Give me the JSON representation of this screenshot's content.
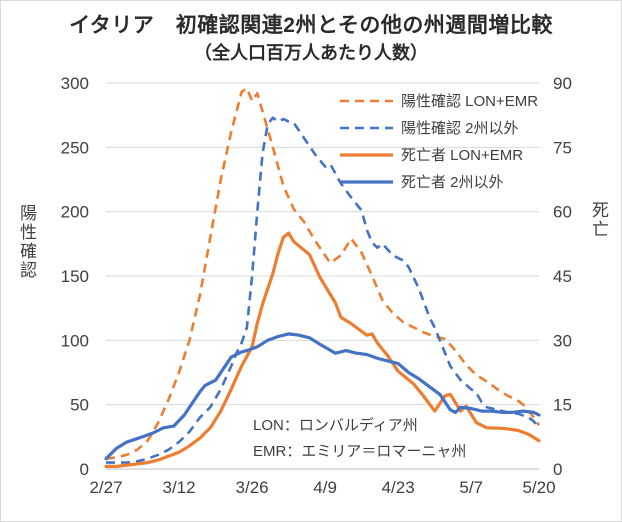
{
  "title": "イタリア　初確認関連2州とその他の州週間増比較",
  "subtitle": "（全人口百万人あたり人数）",
  "axes": {
    "left_title": "陽性確認",
    "right_title": "死亡"
  },
  "annotation": {
    "line1": "LON：ロンバルディア州",
    "line2": "EMR：エミリア＝ロマーニャ州"
  },
  "colors": {
    "orange": "#ED7D31",
    "blue": "#4472C4",
    "gridline": "#D9D9D9",
    "axis_line": "#BFBFBF",
    "text": "#3F3F3F"
  },
  "chart_data": {
    "type": "line",
    "title": "イタリア　初確認関連2州とその他の州週間増比較（全人口百万人あたり人数）",
    "x_tick_labels": [
      "2/27",
      "3/12",
      "3/26",
      "4/9",
      "4/23",
      "5/7",
      "5/20"
    ],
    "x_tick_days": [
      0,
      14,
      28,
      42,
      56,
      70,
      83
    ],
    "x_range_days": [
      0,
      83
    ],
    "left_axis": {
      "label": "陽性確認",
      "ticks": [
        0,
        50,
        100,
        150,
        200,
        250,
        300
      ],
      "range": [
        0,
        300
      ]
    },
    "right_axis": {
      "label": "死亡",
      "ticks": [
        0,
        15,
        30,
        45,
        60,
        75,
        90
      ],
      "range": [
        0,
        90
      ]
    },
    "grid": true,
    "legend_position": "inside-top-right",
    "series": [
      {
        "key": "positive-lon-emr",
        "name": "陽性確認 LON+EMR",
        "color": "#ED7D31",
        "style": "dashed",
        "axis": "left",
        "points": [
          [
            0,
            8
          ],
          [
            2,
            9
          ],
          [
            4,
            11
          ],
          [
            6,
            15
          ],
          [
            8,
            22
          ],
          [
            10,
            36
          ],
          [
            12,
            54
          ],
          [
            14,
            75
          ],
          [
            16,
            100
          ],
          [
            18,
            135
          ],
          [
            20,
            180
          ],
          [
            22,
            225
          ],
          [
            24,
            262
          ],
          [
            26,
            293
          ],
          [
            27,
            296
          ],
          [
            28,
            286
          ],
          [
            29,
            292
          ],
          [
            30,
            278
          ],
          [
            32,
            250
          ],
          [
            34,
            220
          ],
          [
            36,
            202
          ],
          [
            38,
            192
          ],
          [
            40,
            178
          ],
          [
            42,
            166
          ],
          [
            43,
            160
          ],
          [
            45,
            166
          ],
          [
            47,
            179
          ],
          [
            49,
            168
          ],
          [
            51,
            150
          ],
          [
            53,
            131
          ],
          [
            55,
            121
          ],
          [
            57,
            114
          ],
          [
            59,
            110
          ],
          [
            61,
            106
          ],
          [
            63,
            103
          ],
          [
            65,
            101
          ],
          [
            67,
            92
          ],
          [
            69,
            81
          ],
          [
            71,
            73
          ],
          [
            73,
            68
          ],
          [
            75,
            62
          ],
          [
            77,
            57
          ],
          [
            79,
            53
          ],
          [
            80,
            50
          ],
          [
            81,
            45
          ],
          [
            82,
            40
          ],
          [
            83,
            34
          ]
        ]
      },
      {
        "key": "positive-others",
        "name": "陽性確認 2州以外",
        "color": "#4472C4",
        "style": "dashed",
        "axis": "left",
        "points": [
          [
            0,
            5
          ],
          [
            2,
            5
          ],
          [
            4,
            5
          ],
          [
            6,
            6
          ],
          [
            8,
            8
          ],
          [
            10,
            11
          ],
          [
            12,
            15
          ],
          [
            14,
            21
          ],
          [
            16,
            29
          ],
          [
            18,
            40
          ],
          [
            20,
            48
          ],
          [
            22,
            62
          ],
          [
            24,
            80
          ],
          [
            25,
            90
          ],
          [
            26,
            98
          ],
          [
            27,
            110
          ],
          [
            28,
            150
          ],
          [
            29,
            200
          ],
          [
            30,
            245
          ],
          [
            31,
            268
          ],
          [
            32,
            273
          ],
          [
            33,
            270
          ],
          [
            34,
            272
          ],
          [
            35,
            270
          ],
          [
            36,
            269
          ],
          [
            38,
            257
          ],
          [
            40,
            245
          ],
          [
            42,
            235
          ],
          [
            43,
            237
          ],
          [
            45,
            222
          ],
          [
            47,
            211
          ],
          [
            49,
            201
          ],
          [
            50,
            186
          ],
          [
            51,
            176
          ],
          [
            52,
            172
          ],
          [
            53,
            175
          ],
          [
            55,
            166
          ],
          [
            57,
            162
          ],
          [
            58,
            157
          ],
          [
            60,
            140
          ],
          [
            62,
            118
          ],
          [
            63,
            110
          ],
          [
            65,
            90
          ],
          [
            66,
            80
          ],
          [
            68,
            69
          ],
          [
            70,
            62
          ],
          [
            71,
            59
          ],
          [
            72,
            52
          ],
          [
            73,
            48
          ],
          [
            75,
            46
          ],
          [
            77,
            44
          ],
          [
            79,
            43
          ],
          [
            81,
            40
          ],
          [
            82,
            37
          ],
          [
            83,
            32
          ]
        ]
      },
      {
        "key": "deaths-lon-emr",
        "name": "死亡者 LON+EMR",
        "color": "#ED7D31",
        "style": "solid",
        "axis": "right",
        "points": [
          [
            0,
            0.6
          ],
          [
            2,
            0.6
          ],
          [
            4,
            0.9
          ],
          [
            6,
            1.2
          ],
          [
            8,
            1.5
          ],
          [
            10,
            2.1
          ],
          [
            12,
            3
          ],
          [
            14,
            3.9
          ],
          [
            16,
            5.4
          ],
          [
            18,
            7.2
          ],
          [
            20,
            9.6
          ],
          [
            22,
            13.5
          ],
          [
            24,
            18.6
          ],
          [
            26,
            24
          ],
          [
            28,
            28.5
          ],
          [
            29,
            34
          ],
          [
            30,
            38.4
          ],
          [
            32,
            45.6
          ],
          [
            33,
            50.4
          ],
          [
            34,
            54
          ],
          [
            35,
            55
          ],
          [
            36,
            53
          ],
          [
            39,
            50
          ],
          [
            41,
            44.7
          ],
          [
            44,
            38.7
          ],
          [
            45,
            35.4
          ],
          [
            47,
            33.9
          ],
          [
            48,
            33
          ],
          [
            50,
            31.2
          ],
          [
            51,
            31.5
          ],
          [
            52,
            29.4
          ],
          [
            54,
            26.4
          ],
          [
            56,
            22.8
          ],
          [
            59,
            19.8
          ],
          [
            61,
            16.8
          ],
          [
            63,
            13.5
          ],
          [
            65,
            17.1
          ],
          [
            66,
            17.4
          ],
          [
            68,
            13.5
          ],
          [
            69,
            14.7
          ],
          [
            71,
            10.8
          ],
          [
            73,
            9.6
          ],
          [
            76,
            9.5
          ],
          [
            79,
            9
          ],
          [
            81,
            8.1
          ],
          [
            83,
            6.6
          ]
        ]
      },
      {
        "key": "deaths-others",
        "name": "死亡者 2州以外",
        "color": "#4472C4",
        "style": "solid",
        "axis": "right",
        "points": [
          [
            0,
            2.4
          ],
          [
            2,
            4.8
          ],
          [
            4,
            6.3
          ],
          [
            7,
            7.5
          ],
          [
            9,
            8.4
          ],
          [
            11,
            9.6
          ],
          [
            13,
            10
          ],
          [
            15,
            12.6
          ],
          [
            16,
            14.4
          ],
          [
            18,
            18
          ],
          [
            19,
            19.5
          ],
          [
            21,
            20.7
          ],
          [
            23,
            24.3
          ],
          [
            24,
            26.1
          ],
          [
            26,
            27.3
          ],
          [
            27,
            27.6
          ],
          [
            29,
            28.5
          ],
          [
            31,
            30
          ],
          [
            33,
            30.9
          ],
          [
            35,
            31.5
          ],
          [
            37,
            31.2
          ],
          [
            39,
            30.6
          ],
          [
            41,
            29.1
          ],
          [
            44,
            27
          ],
          [
            46,
            27.6
          ],
          [
            48,
            27
          ],
          [
            50,
            26.7
          ],
          [
            52,
            25.8
          ],
          [
            54,
            25.2
          ],
          [
            56,
            24.6
          ],
          [
            58,
            22.5
          ],
          [
            60,
            21
          ],
          [
            62,
            19.2
          ],
          [
            64,
            17.4
          ],
          [
            66,
            13.8
          ],
          [
            67,
            13.2
          ],
          [
            68,
            14.4
          ],
          [
            70,
            14.1
          ],
          [
            72,
            13.5
          ],
          [
            74,
            13.5
          ],
          [
            76,
            13.2
          ],
          [
            78,
            13.2
          ],
          [
            80,
            13.5
          ],
          [
            82,
            13.2
          ],
          [
            83,
            12.6
          ]
        ]
      }
    ]
  }
}
